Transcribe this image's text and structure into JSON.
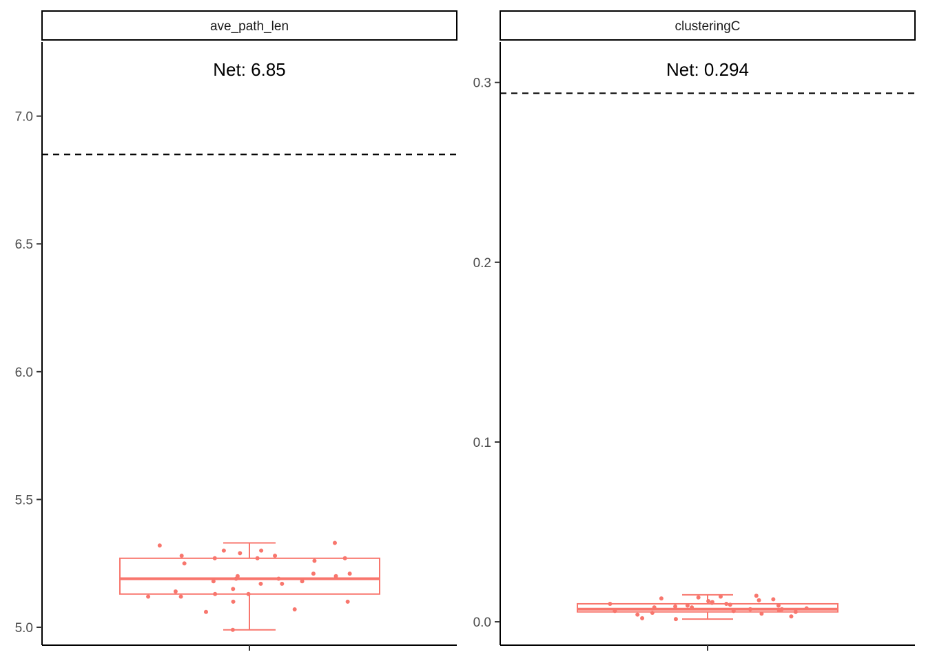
{
  "chart_data": [
    {
      "type": "box",
      "facet": "ave_path_len",
      "annotation": "Net: 6.85",
      "reference_line": 6.85,
      "ylim": [
        4.93,
        7.29
      ],
      "yticks": [
        5.0,
        5.5,
        6.0,
        6.5,
        7.0
      ],
      "ytick_labels": [
        "5.0",
        "5.5",
        "6.0",
        "6.5",
        "7.0"
      ],
      "box": {
        "whisker_low": 4.99,
        "q1": 5.13,
        "median": 5.19,
        "q3": 5.27,
        "whisker_high": 5.33
      },
      "points": [
        5.33,
        5.32,
        5.3,
        5.3,
        5.29,
        5.28,
        5.28,
        5.27,
        5.27,
        5.27,
        5.26,
        5.25,
        5.21,
        5.21,
        5.2,
        5.2,
        5.19,
        5.19,
        5.18,
        5.18,
        5.17,
        5.17,
        5.15,
        5.14,
        5.13,
        5.13,
        5.12,
        5.12,
        5.1,
        5.1,
        5.07,
        5.06,
        4.99
      ],
      "color": "#f8766d",
      "grid": false
    },
    {
      "type": "box",
      "facet": "clusteringC",
      "annotation": "Net: 0.294",
      "reference_line": 0.294,
      "ylim": [
        -0.013,
        0.3225
      ],
      "yticks": [
        0.0,
        0.1,
        0.2,
        0.3
      ],
      "ytick_labels": [
        "0.0",
        "0.1",
        "0.2",
        "0.3"
      ],
      "box": {
        "whisker_low": 0.0015,
        "q1": 0.0055,
        "median": 0.007,
        "q3": 0.01,
        "whisker_high": 0.015
      },
      "points": [
        0.0145,
        0.014,
        0.0135,
        0.013,
        0.0125,
        0.012,
        0.0115,
        0.011,
        0.0105,
        0.01,
        0.01,
        0.0095,
        0.009,
        0.009,
        0.0085,
        0.008,
        0.008,
        0.0075,
        0.007,
        0.007,
        0.0065,
        0.006,
        0.006,
        0.0055,
        0.005,
        0.0045,
        0.004,
        0.003,
        0.002,
        0.0015
      ],
      "color": "#f8766d",
      "grid": false
    }
  ]
}
